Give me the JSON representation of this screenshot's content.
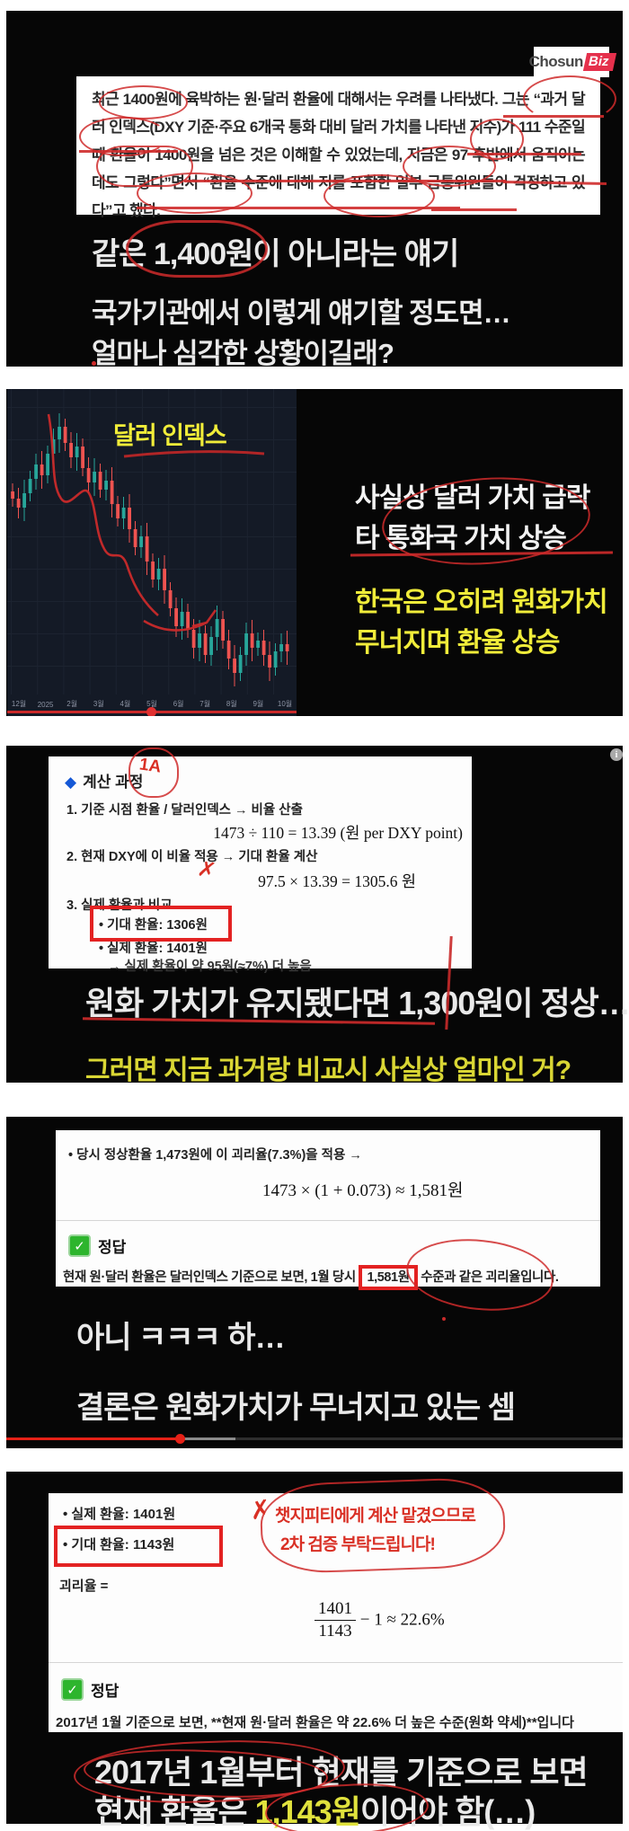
{
  "colors": {
    "panel_bg": "#060606",
    "page_bg": "#ffffff",
    "red_pen": "#cf2b2b",
    "brand_red": "#e5304c",
    "yellow_text": "#f0ec3a",
    "candle_up": "#27a69a",
    "candle_down": "#ef5350",
    "accent_blue": "#1558d6",
    "green_check": "#2db52d",
    "progress_red": "#e62117",
    "chart_bg": "#141a26"
  },
  "icons": {
    "check_glyph": "✓",
    "info_glyph": "i",
    "diamond_glyph": "◆",
    "x_scribble": "✗",
    "scribble_note": "1A"
  },
  "panel1": {
    "logo": {
      "chosun": "Chosun",
      "biz": "Biz"
    },
    "article_text": "최근 1400원에 육박하는 원·달러 환율에 대해서는 우려를 나타냈다. 그는 “과거 달러 인덱스(DXY 기준·주요 6개국 통화 대비 달러 가치를 나타낸 지수)가 111 수준일 때 환율이 1400원을 넘은 것은 이해할 수 있었는데, 지금은 97 후반에서 움직이는데도 그렇다”면서 “환율 수준에 대해 저를 포함한 일부 금통위원들이 걱정하고 있다”고 했다.",
    "caption1_pre": "같은 ",
    "caption1_num": "1,400원",
    "caption1_post": "이 아니라는 얘기",
    "caption2_line1": "국가기관에서 이렇게 얘기할 정도면…",
    "caption2_line2": "얼마나 심각한 상황이길래?"
  },
  "panel2": {
    "white_line1": "사실상 달러 가치 급락",
    "white_line2": "타 통화국 가치 상승",
    "yellow_line1": "한국은 오히려 원화가치",
    "yellow_line2": "무너지며 환율 상승"
  },
  "chart_data": {
    "type": "candlestick",
    "title": "달러 인덱스",
    "x_labels": [
      "12월",
      "2025",
      "2월",
      "3월",
      "4월",
      "5월",
      "6월",
      "7월",
      "8월",
      "9월",
      "10월"
    ],
    "ylim": [
      96,
      111
    ],
    "closes": [
      106.3,
      105.8,
      106.6,
      107.4,
      108.2,
      107.6,
      108.8,
      109.6,
      110.3,
      109.4,
      108.6,
      109.2,
      108.0,
      107.2,
      107.8,
      106.8,
      107.3,
      106.0,
      105.2,
      105.8,
      104.6,
      103.6,
      104.2,
      102.8,
      101.8,
      102.4,
      101.2,
      100.2,
      99.2,
      100.0,
      99.0,
      98.0,
      98.8,
      97.6,
      98.6,
      99.6,
      98.4,
      97.4,
      96.6,
      97.6,
      98.8,
      98.0,
      98.4,
      97.6,
      96.9,
      97.8,
      98.2,
      97.8
    ],
    "annotation": "red pen downtrend curve with arrow",
    "legend": "none",
    "grid": true
  },
  "panel3": {
    "title": "계산 과정",
    "step1": "1.  기준 시점 환율 / 달러인덱스 → 비율 산출",
    "math1": "1473 ÷ 110 = 13.39 (원 per DXY point)",
    "step2": "2.  현재 DXY에 이 비율 적용 → 기대 환율 계산",
    "math2": "97.5 × 13.39 = 1305.6 원",
    "step3": "3.  실제 환율과 비교",
    "bullet1": "•   기대 환율: 1306원",
    "bullet2": "•   실제 환율: 1401원",
    "note": "→  실제 환율이 약 95원(≈7%) 더 높음",
    "caption_white": "원화 가치가 유지됐다면 1,300원이 정상…",
    "caption_yellow": "그러면 지금 과거랑 비교시 사실상 얼마인 거?"
  },
  "panel4": {
    "bullet": "•   당시 정상환율 1,473원에 이 괴리율(7.3%)을 적용 →",
    "math": "1473 × (1 + 0.073) ≈ 1,581원",
    "answer_label": "정답",
    "sentence_pre": "현재 원·달러 환율은 달러인덱스 기준으로 보면, 1월 당시 ",
    "sentence_box": "1,581원",
    "sentence_post": " 수준과 같은 괴리율입니다.",
    "caption1": "아니 ㅋㅋㅋ 하…",
    "caption2": "결론은 원화가치가 무너지고 있는 셈"
  },
  "panel5": {
    "bullet1": "•   실제 환율: 1401원",
    "bullet2": "•   기대 환율: 1143원",
    "handwriting1": "챗지피티에게 계산 맡겼으므로",
    "handwriting2": "2차 검증 부탁드립니다!",
    "label": "괴리율 =",
    "frac_num": "1401",
    "frac_den": "1143",
    "frac_rest": " − 1 ≈ 22.6%",
    "answer_label": "정답",
    "sentence": "2017년 1월 기준으로 보면, **현재 원·달러 환율은 약 22.6% 더 높은 수준(원화 약세)**입니다",
    "big1": "2017년 1월부터 현재를 기준으로 보면",
    "big2_pre": "현재 환율은 ",
    "big2_num": "1,143원",
    "big2_post": "이어야 함(…)"
  }
}
